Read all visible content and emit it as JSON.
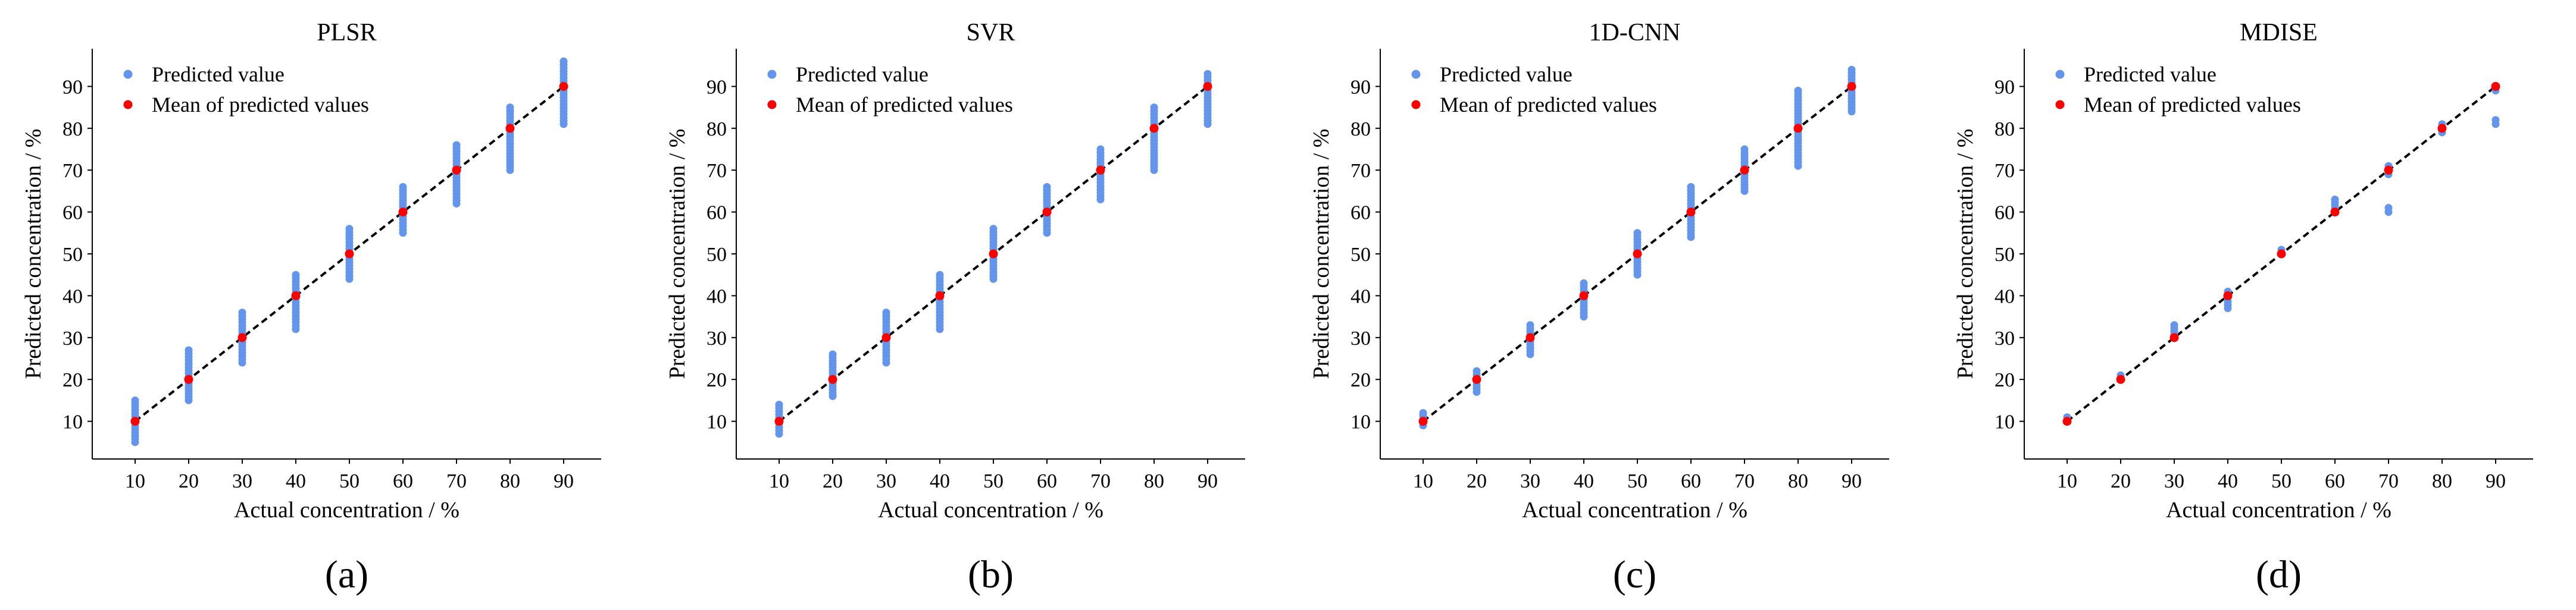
{
  "colors": {
    "predicted": "#6495ED",
    "mean": "#FF0000",
    "identity_line": "#000000",
    "axis": "#000000"
  },
  "shared": {
    "xlabel": "Actual concentration / %",
    "ylabel": "Predicted concentration / %",
    "legend": [
      "Predicted value",
      "Mean of predicted values"
    ],
    "ticks": [
      10,
      20,
      30,
      40,
      50,
      60,
      70,
      80,
      90
    ]
  },
  "chart_data": [
    {
      "type": "scatter",
      "panel_label": "(a)",
      "title": "PLSR",
      "xlabel": "Actual concentration / %",
      "ylabel": "Predicted concentration / %",
      "xticks": [
        10,
        20,
        30,
        40,
        50,
        60,
        70,
        80,
        90
      ],
      "yticks": [
        10,
        20,
        30,
        40,
        50,
        60,
        70,
        80,
        90
      ],
      "xlim": [
        2,
        97
      ],
      "ylim": [
        1,
        99
      ],
      "legend_position": "top-left",
      "series": [
        {
          "name": "Predicted value",
          "x": [
            10,
            20,
            30,
            40,
            50,
            60,
            70,
            80,
            90
          ],
          "y_min": [
            5,
            15,
            24,
            32,
            44,
            55,
            62,
            70,
            81
          ],
          "y_max": [
            15,
            27,
            36,
            45,
            56,
            66,
            76,
            85,
            96
          ]
        },
        {
          "name": "Mean of predicted values",
          "x": [
            10,
            20,
            30,
            40,
            50,
            60,
            70,
            80,
            90
          ],
          "y": [
            10,
            20,
            30,
            40,
            50,
            60,
            70,
            80,
            90
          ]
        }
      ],
      "identity_line": [
        [
          10,
          10
        ],
        [
          90,
          90
        ]
      ]
    },
    {
      "type": "scatter",
      "panel_label": "(b)",
      "title": "SVR",
      "xlabel": "Actual concentration / %",
      "ylabel": "Predicted concentration / %",
      "xticks": [
        10,
        20,
        30,
        40,
        50,
        60,
        70,
        80,
        90
      ],
      "yticks": [
        10,
        20,
        30,
        40,
        50,
        60,
        70,
        80,
        90
      ],
      "xlim": [
        2,
        97
      ],
      "ylim": [
        1,
        99
      ],
      "legend_position": "top-left",
      "series": [
        {
          "name": "Predicted value",
          "x": [
            10,
            20,
            30,
            40,
            50,
            60,
            70,
            80,
            90
          ],
          "y_min": [
            7,
            16,
            24,
            32,
            44,
            55,
            63,
            70,
            81
          ],
          "y_max": [
            14,
            26,
            36,
            45,
            56,
            66,
            75,
            85,
            93
          ]
        },
        {
          "name": "Mean of predicted values",
          "x": [
            10,
            20,
            30,
            40,
            50,
            60,
            70,
            80,
            90
          ],
          "y": [
            10,
            20,
            30,
            40,
            50,
            60,
            70,
            80,
            90
          ]
        }
      ],
      "identity_line": [
        [
          10,
          10
        ],
        [
          90,
          90
        ]
      ]
    },
    {
      "type": "scatter",
      "panel_label": "(c)",
      "title": "1D-CNN",
      "xlabel": "Actual concentration / %",
      "ylabel": "Predicted concentration / %",
      "xticks": [
        10,
        20,
        30,
        40,
        50,
        60,
        70,
        80,
        90
      ],
      "yticks": [
        10,
        20,
        30,
        40,
        50,
        60,
        70,
        80,
        90
      ],
      "xlim": [
        2,
        97
      ],
      "ylim": [
        1,
        99
      ],
      "legend_position": "top-left",
      "series": [
        {
          "name": "Predicted value",
          "x": [
            10,
            20,
            30,
            40,
            50,
            60,
            70,
            80,
            90
          ],
          "y_min": [
            9,
            17,
            26,
            35,
            45,
            54,
            65,
            71,
            84
          ],
          "y_max": [
            12,
            22,
            33,
            43,
            55,
            66,
            75,
            89,
            94
          ]
        },
        {
          "name": "Mean of predicted values",
          "x": [
            10,
            20,
            30,
            40,
            50,
            60,
            70,
            80,
            90
          ],
          "y": [
            10,
            20,
            30,
            40,
            50,
            60,
            70,
            80,
            90
          ]
        }
      ],
      "identity_line": [
        [
          10,
          10
        ],
        [
          90,
          90
        ]
      ]
    },
    {
      "type": "scatter",
      "panel_label": "(d)",
      "title": "MDISE",
      "xlabel": "Actual concentration / %",
      "ylabel": "Predicted concentration / %",
      "xticks": [
        10,
        20,
        30,
        40,
        50,
        60,
        70,
        80,
        90
      ],
      "yticks": [
        10,
        20,
        30,
        40,
        50,
        60,
        70,
        80,
        90
      ],
      "xlim": [
        2,
        97
      ],
      "ylim": [
        1,
        99
      ],
      "legend_position": "top-left",
      "series": [
        {
          "name": "Predicted value",
          "x": [
            10,
            20,
            30,
            40,
            50,
            60,
            70,
            70,
            80,
            90,
            90
          ],
          "y_min": [
            10,
            20,
            30,
            37,
            50,
            60,
            69,
            60,
            79,
            89,
            81
          ],
          "y_max": [
            11,
            21,
            33,
            41,
            51,
            63,
            71,
            61,
            81,
            90,
            82
          ]
        },
        {
          "name": "Mean of predicted values",
          "x": [
            10,
            20,
            30,
            40,
            50,
            60,
            70,
            80,
            90
          ],
          "y": [
            10,
            20,
            30,
            40,
            50,
            60,
            70,
            80,
            90
          ]
        }
      ],
      "identity_line": [
        [
          10,
          10
        ],
        [
          90,
          90
        ]
      ]
    }
  ]
}
